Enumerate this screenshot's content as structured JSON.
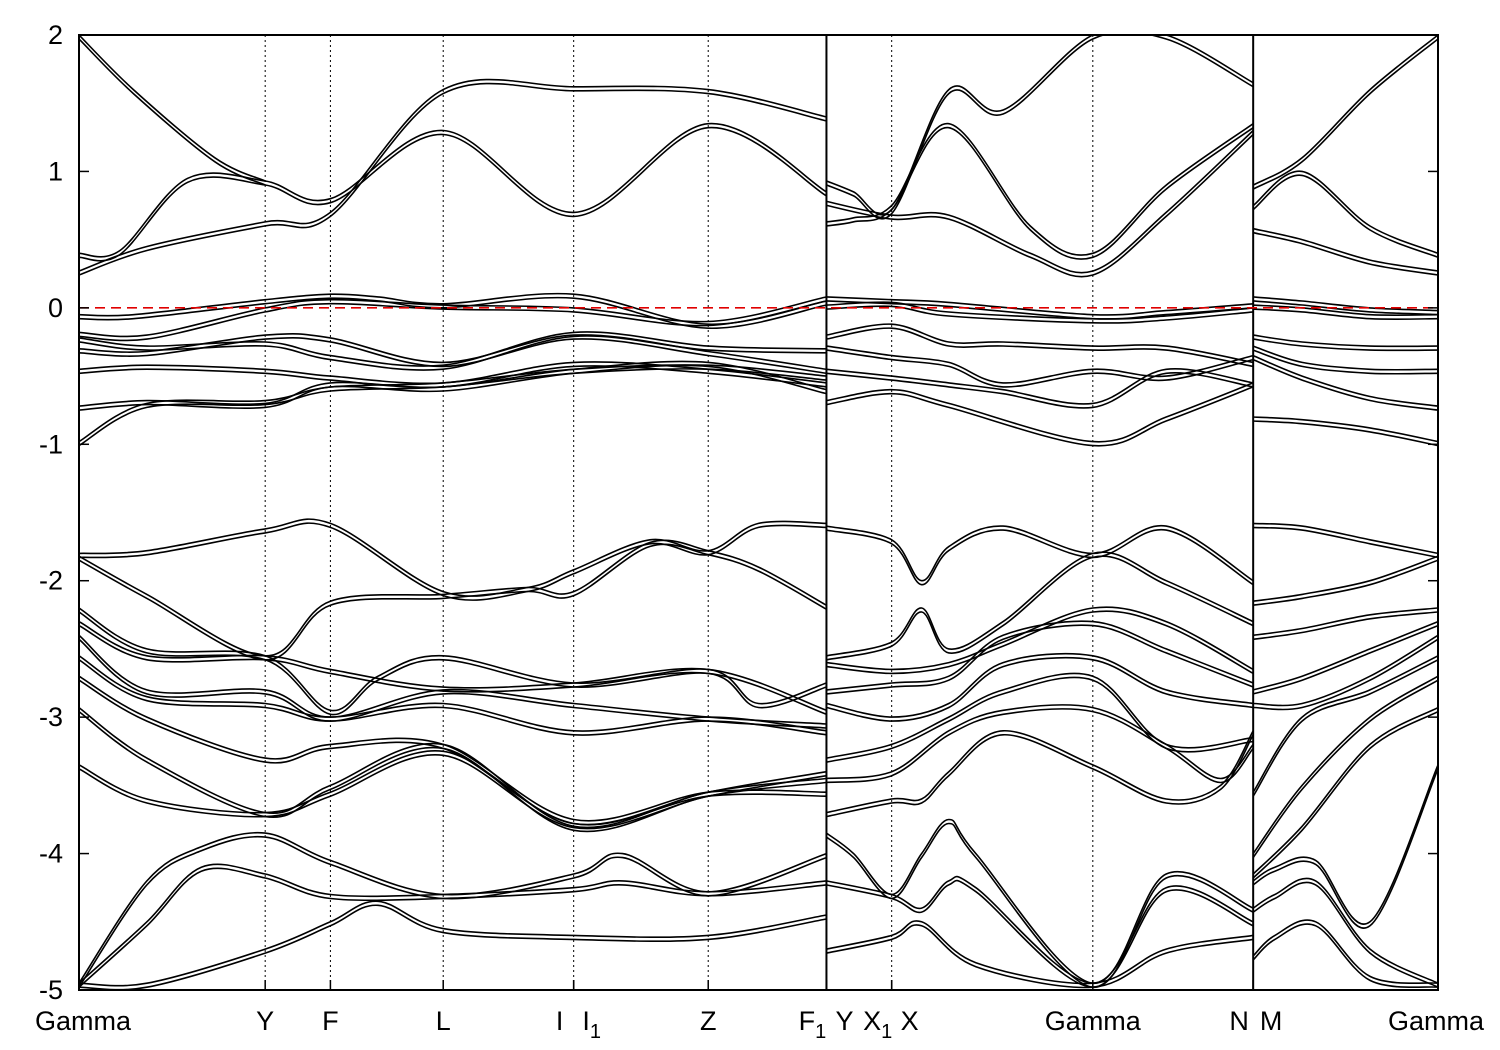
{
  "chart_data": {
    "type": "line",
    "title": "",
    "xlabel": "",
    "ylabel": "",
    "ylim": [
      -5,
      2
    ],
    "yticks": [
      2,
      1,
      0,
      -1,
      -2,
      -3,
      -4,
      -5
    ],
    "grid": false,
    "legend": "none",
    "fermi_level": 0,
    "fermi_color": "#e00000",
    "band_color": "#000000",
    "xlim": [
      0,
      100
    ],
    "kpoints": [
      {
        "label": "Gamma",
        "sub": "",
        "x": 0
      },
      {
        "label": "Y",
        "sub": "",
        "x": 13.7
      },
      {
        "label": "F",
        "sub": "",
        "x": 18.5
      },
      {
        "label": "L",
        "sub": "",
        "x": 26.8
      },
      {
        "label": "I",
        "sub": "",
        "x": 36.4
      },
      {
        "label": "I",
        "sub": "1",
        "x": 36.4
      },
      {
        "label": "Z",
        "sub": "",
        "x": 46.3
      },
      {
        "label": "F",
        "sub": "1",
        "x": 55.0
      },
      {
        "label": "Y",
        "sub": "",
        "x": 55.0
      },
      {
        "label": "X",
        "sub": "1",
        "x": 59.8
      },
      {
        "label": "X",
        "sub": "",
        "x": 59.8
      },
      {
        "label": "Gamma",
        "sub": "",
        "x": 74.6
      },
      {
        "label": "N",
        "sub": "",
        "x": 86.4
      },
      {
        "label": "M",
        "sub": "",
        "x": 86.4
      },
      {
        "label": "Gamma",
        "sub": "",
        "x": 100
      }
    ],
    "segment_breaks": [
      55.0,
      86.4
    ],
    "series": [
      {
        "x": [
          0,
          3,
          8,
          13.7,
          18.5,
          26.8,
          36.4,
          46.3,
          55
        ],
        "y": [
          0.4,
          0.42,
          0.95,
          0.93,
          0.8,
          1.3,
          0.7,
          1.35,
          0.85
        ]
      },
      {
        "x": [
          0,
          5,
          13.7,
          18.5,
          26.8,
          36.4,
          46.3,
          55
        ],
        "y": [
          0.27,
          0.45,
          0.63,
          0.7,
          1.6,
          1.62,
          1.6,
          1.4
        ]
      },
      {
        "x": [
          0,
          4,
          10,
          13.7
        ],
        "y": [
          2.0,
          1.6,
          1.1,
          0.93
        ]
      },
      {
        "x": [
          0,
          4,
          13.7,
          18.5,
          22,
          26.8,
          36.4,
          46.3,
          55
        ],
        "y": [
          -0.05,
          -0.05,
          0.06,
          0.1,
          0.08,
          0.03,
          0.1,
          -0.12,
          0.05
        ]
      },
      {
        "x": [
          0,
          5,
          13.7,
          18.5,
          26.8,
          36.4,
          46.3,
          55
        ],
        "y": [
          -0.18,
          -0.2,
          0.0,
          0.06,
          0.02,
          0.0,
          -0.1,
          0.08
        ]
      },
      {
        "x": [
          0,
          5,
          13.7,
          18.5,
          26.8,
          36.4,
          46.3,
          55
        ],
        "y": [
          -0.22,
          -0.28,
          -0.25,
          -0.35,
          -0.42,
          -0.18,
          -0.28,
          -0.3
        ]
      },
      {
        "x": [
          0,
          5,
          13.7,
          18.5,
          26.8,
          36.4,
          46.3,
          55
        ],
        "y": [
          -0.3,
          -0.32,
          -0.2,
          -0.22,
          -0.4,
          -0.2,
          -0.32,
          -0.45
        ]
      },
      {
        "x": [
          0,
          5,
          13.7,
          18.5,
          26.8,
          36.4,
          46.3,
          55
        ],
        "y": [
          -0.45,
          -0.42,
          -0.45,
          -0.5,
          -0.55,
          -0.4,
          -0.45,
          -0.55
        ]
      },
      {
        "x": [
          0,
          5,
          13.7,
          18.5,
          26.8,
          36.4,
          46.3,
          55
        ],
        "y": [
          -0.72,
          -0.68,
          -0.7,
          -0.55,
          -0.58,
          -0.45,
          -0.4,
          -0.6
        ]
      },
      {
        "x": [
          0,
          5,
          13.7,
          18.5,
          26.8,
          36.4,
          46.3,
          55
        ],
        "y": [
          -0.98,
          -0.7,
          -0.68,
          -0.58,
          -0.55,
          -0.45,
          -0.42,
          -0.5
        ]
      },
      {
        "x": [
          0,
          5,
          13.7,
          18.5,
          26.8,
          33,
          36.4,
          42,
          46.3,
          50,
          55
        ],
        "y": [
          -1.8,
          -1.78,
          -1.62,
          -1.58,
          -2.08,
          -2.05,
          -1.92,
          -1.7,
          -1.78,
          -1.58,
          -1.58
        ]
      },
      {
        "x": [
          0,
          5,
          13.7,
          18.5,
          26.8,
          33,
          36.4,
          42,
          46.3,
          50,
          55
        ],
        "y": [
          -1.82,
          -2.1,
          -2.55,
          -2.15,
          -2.1,
          -2.05,
          -2.08,
          -1.72,
          -1.78,
          -1.9,
          -2.18
        ]
      },
      {
        "x": [
          0,
          5,
          13.7,
          18.5,
          22,
          26.8,
          36.4,
          46.3,
          50,
          55
        ],
        "y": [
          -2.2,
          -2.5,
          -2.55,
          -2.95,
          -2.7,
          -2.55,
          -2.75,
          -2.65,
          -2.9,
          -2.75
        ]
      },
      {
        "x": [
          0,
          5,
          13.7,
          18.5,
          26.8,
          36.4,
          46.3,
          55
        ],
        "y": [
          -2.3,
          -2.55,
          -2.55,
          -2.65,
          -2.78,
          -2.75,
          -2.65,
          -2.95
        ]
      },
      {
        "x": [
          0,
          5,
          13.7,
          18.5,
          26.8,
          36.4,
          46.3,
          55
        ],
        "y": [
          -2.4,
          -2.8,
          -2.8,
          -3.0,
          -2.8,
          -2.9,
          -3.0,
          -3.05
        ]
      },
      {
        "x": [
          0,
          5,
          13.7,
          18.5,
          26.8,
          36.4,
          46.3,
          55
        ],
        "y": [
          -2.55,
          -2.85,
          -2.9,
          -3.0,
          -2.9,
          -3.1,
          -3.0,
          -3.1
        ]
      },
      {
        "x": [
          0,
          5,
          13.7,
          18.5,
          26.8,
          36.4,
          46.3,
          55
        ],
        "y": [
          -2.7,
          -3.0,
          -3.3,
          -3.2,
          -3.2,
          -3.75,
          -3.55,
          -3.55
        ]
      },
      {
        "x": [
          0,
          5,
          13.7,
          18.5,
          26.8,
          36.4,
          46.3,
          55
        ],
        "y": [
          -2.93,
          -3.3,
          -3.7,
          -3.5,
          -3.2,
          -3.8,
          -3.55,
          -3.45
        ]
      },
      {
        "x": [
          0,
          5,
          13.7,
          18.5,
          26.8,
          36.4,
          46.3,
          55
        ],
        "y": [
          -3.35,
          -3.6,
          -3.7,
          -3.55,
          -3.25,
          -3.78,
          -3.55,
          -3.4
        ]
      },
      {
        "x": [
          0,
          5,
          9,
          13.7,
          18.5,
          26.8,
          36.4,
          40,
          46.3,
          55
        ],
        "y": [
          -4.95,
          -4.2,
          -3.95,
          -3.85,
          -4.05,
          -4.3,
          -4.15,
          -4.0,
          -4.28,
          -4.0
        ]
      },
      {
        "x": [
          0,
          5,
          9,
          13.7,
          18.5,
          26.8,
          36.4,
          40,
          46.3,
          55
        ],
        "y": [
          -4.95,
          -4.5,
          -4.1,
          -4.15,
          -4.3,
          -4.3,
          -4.25,
          -4.2,
          -4.28,
          -4.2
        ]
      },
      {
        "x": [
          0,
          5,
          13.7,
          18.5,
          22,
          26.8,
          36.4,
          46.3,
          55
        ],
        "y": [
          -4.95,
          -4.95,
          -4.7,
          -4.5,
          -4.35,
          -4.55,
          -4.6,
          -4.6,
          -4.45
        ]
      },
      {
        "x": [
          55,
          57,
          59.8,
          64,
          68,
          74.6,
          80,
          86.4
        ],
        "y": [
          0.93,
          0.85,
          0.72,
          1.6,
          1.45,
          2.0,
          2.0,
          1.65
        ]
      },
      {
        "x": [
          55,
          57,
          59.8,
          64,
          70,
          74.6,
          80,
          86.4
        ],
        "y": [
          0.63,
          0.66,
          0.75,
          1.35,
          0.6,
          0.4,
          0.9,
          1.35
        ]
      },
      {
        "x": [
          55,
          59.8,
          64,
          70,
          74.6,
          80,
          86.4
        ],
        "y": [
          0.78,
          0.68,
          0.68,
          0.4,
          0.27,
          0.7,
          1.3
        ]
      },
      {
        "x": [
          55,
          59.8,
          64,
          74.6,
          80,
          86.4
        ],
        "y": [
          0.08,
          0.06,
          0.04,
          -0.05,
          -0.02,
          0.03
        ]
      },
      {
        "x": [
          55,
          59.8,
          64,
          74.6,
          80,
          86.4
        ],
        "y": [
          0.02,
          0.04,
          -0.03,
          -0.08,
          -0.06,
          0.0
        ]
      },
      {
        "x": [
          55,
          59.8,
          64,
          68,
          74.6,
          80,
          86.4
        ],
        "y": [
          -0.2,
          -0.12,
          -0.25,
          -0.25,
          -0.28,
          -0.28,
          -0.4
        ]
      },
      {
        "x": [
          55,
          59.8,
          64,
          68,
          74.6,
          80,
          86.4
        ],
        "y": [
          -0.28,
          -0.35,
          -0.4,
          -0.55,
          -0.45,
          -0.5,
          -0.35
        ]
      },
      {
        "x": [
          55,
          59.8,
          64,
          68,
          74.6,
          80,
          86.4
        ],
        "y": [
          -0.45,
          -0.5,
          -0.55,
          -0.6,
          -0.7,
          -0.45,
          -0.55
        ]
      },
      {
        "x": [
          55,
          59.8,
          64,
          74.6,
          80,
          86.4
        ],
        "y": [
          -0.68,
          -0.6,
          -0.7,
          -0.98,
          -0.8,
          -0.55
        ]
      },
      {
        "x": [
          55,
          59.8,
          62,
          64,
          68,
          74.6,
          80,
          86.4
        ],
        "y": [
          -1.6,
          -1.7,
          -2.0,
          -1.75,
          -1.6,
          -1.8,
          -1.6,
          -2.0
        ]
      },
      {
        "x": [
          55,
          59.8,
          62,
          64,
          68,
          74.6,
          80,
          86.4
        ],
        "y": [
          -2.55,
          -2.45,
          -2.2,
          -2.5,
          -2.3,
          -1.8,
          -2.0,
          -2.3
        ]
      },
      {
        "x": [
          55,
          59.8,
          64,
          68,
          74.6,
          80,
          86.4
        ],
        "y": [
          -2.6,
          -2.65,
          -2.6,
          -2.45,
          -2.2,
          -2.3,
          -2.65
        ]
      },
      {
        "x": [
          55,
          59.8,
          64,
          68,
          74.6,
          80,
          86.4
        ],
        "y": [
          -2.8,
          -2.75,
          -2.7,
          -2.4,
          -2.3,
          -2.5,
          -2.75
        ]
      },
      {
        "x": [
          55,
          59.8,
          64,
          68,
          74.6,
          80,
          86.4
        ],
        "y": [
          -2.9,
          -3.0,
          -2.9,
          -2.6,
          -2.55,
          -2.8,
          -2.9
        ]
      },
      {
        "x": [
          55,
          59.8,
          64,
          68,
          74.6,
          80,
          86.4
        ],
        "y": [
          -3.3,
          -3.2,
          -3.0,
          -2.8,
          -2.7,
          -3.2,
          -3.15
        ]
      },
      {
        "x": [
          55,
          59.8,
          64,
          68,
          74.6,
          80,
          84,
          86.4
        ],
        "y": [
          -3.45,
          -3.4,
          -3.1,
          -2.95,
          -2.93,
          -3.2,
          -3.45,
          -3.2
        ]
      },
      {
        "x": [
          55,
          59.8,
          62,
          64,
          68,
          74.6,
          80,
          84,
          86.4
        ],
        "y": [
          -3.7,
          -3.6,
          -3.6,
          -3.4,
          -3.1,
          -3.35,
          -3.6,
          -3.5,
          -3.1
        ]
      },
      {
        "x": [
          55,
          57,
          59.8,
          62,
          64,
          66,
          74.6,
          80,
          86.4
        ],
        "y": [
          -3.85,
          -4.0,
          -4.3,
          -4.0,
          -3.75,
          -4.0,
          -4.95,
          -4.15,
          -4.4
        ]
      },
      {
        "x": [
          55,
          59.8,
          62,
          64,
          66,
          74.6,
          80,
          86.4
        ],
        "y": [
          -4.2,
          -4.3,
          -4.4,
          -4.2,
          -4.25,
          -4.95,
          -4.25,
          -4.5
        ]
      },
      {
        "x": [
          55,
          59.8,
          62,
          66,
          74.6,
          80,
          86.4
        ],
        "y": [
          -4.7,
          -4.6,
          -4.5,
          -4.8,
          -4.95,
          -4.7,
          -4.6
        ]
      },
      {
        "x": [
          86.4,
          90,
          95,
          100
        ],
        "y": [
          0.9,
          1.1,
          1.6,
          2.0
        ]
      },
      {
        "x": [
          86.4,
          90,
          95,
          100
        ],
        "y": [
          0.75,
          1.0,
          0.6,
          0.4
        ]
      },
      {
        "x": [
          86.4,
          90,
          95,
          100
        ],
        "y": [
          0.58,
          0.5,
          0.35,
          0.27
        ]
      },
      {
        "x": [
          86.4,
          90,
          95,
          100
        ],
        "y": [
          0.08,
          0.05,
          0.0,
          -0.02
        ]
      },
      {
        "x": [
          86.4,
          90,
          95,
          100
        ],
        "y": [
          0.02,
          0.0,
          -0.05,
          -0.05
        ]
      },
      {
        "x": [
          86.4,
          90,
          95,
          100
        ],
        "y": [
          -0.2,
          -0.25,
          -0.28,
          -0.28
        ]
      },
      {
        "x": [
          86.4,
          90,
          95,
          100
        ],
        "y": [
          -0.28,
          -0.4,
          -0.45,
          -0.45
        ]
      },
      {
        "x": [
          86.4,
          90,
          95,
          100
        ],
        "y": [
          -0.35,
          -0.5,
          -0.65,
          -0.72
        ]
      },
      {
        "x": [
          86.4,
          90,
          95,
          100
        ],
        "y": [
          -0.8,
          -0.82,
          -0.88,
          -0.98
        ]
      },
      {
        "x": [
          86.4,
          90,
          95,
          100
        ],
        "y": [
          -1.58,
          -1.6,
          -1.7,
          -1.8
        ]
      },
      {
        "x": [
          86.4,
          90,
          95,
          100
        ],
        "y": [
          -2.15,
          -2.1,
          -2.0,
          -1.82
        ]
      },
      {
        "x": [
          86.4,
          90,
          95,
          100
        ],
        "y": [
          -2.4,
          -2.35,
          -2.25,
          -2.2
        ]
      },
      {
        "x": [
          86.4,
          90,
          95,
          100
        ],
        "y": [
          -2.8,
          -2.7,
          -2.5,
          -2.3
        ]
      },
      {
        "x": [
          86.4,
          90,
          95,
          100
        ],
        "y": [
          -2.9,
          -2.9,
          -2.7,
          -2.4
        ]
      },
      {
        "x": [
          86.4,
          90,
          95,
          100
        ],
        "y": [
          -3.55,
          -3.0,
          -2.8,
          -2.55
        ]
      },
      {
        "x": [
          86.4,
          90,
          95,
          100
        ],
        "y": [
          -4.0,
          -3.5,
          -3.0,
          -2.7
        ]
      },
      {
        "x": [
          86.4,
          90,
          95,
          100
        ],
        "y": [
          -4.15,
          -3.8,
          -3.2,
          -2.93
        ]
      },
      {
        "x": [
          86.4,
          88,
          91,
          95,
          100
        ],
        "y": [
          -4.2,
          -4.1,
          -4.05,
          -4.5,
          -3.35
        ]
      },
      {
        "x": [
          86.4,
          88,
          91,
          95,
          100
        ],
        "y": [
          -4.4,
          -4.3,
          -4.2,
          -4.7,
          -4.95
        ]
      },
      {
        "x": [
          86.4,
          88,
          91,
          95,
          100
        ],
        "y": [
          -4.75,
          -4.6,
          -4.5,
          -4.9,
          -4.95
        ]
      }
    ]
  }
}
